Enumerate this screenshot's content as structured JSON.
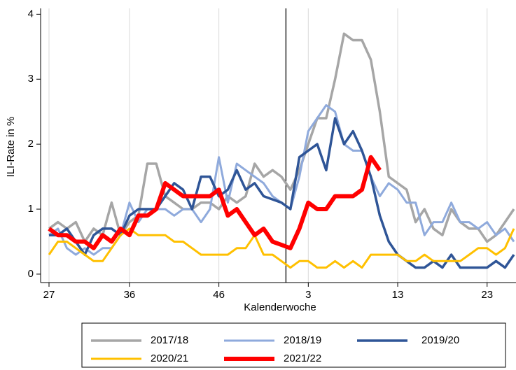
{
  "chart_data": {
    "type": "line",
    "xlabel": "Kalenderwoche",
    "ylabel": "ILI-Rate in %",
    "categories": [
      "27",
      null,
      null,
      null,
      null,
      null,
      null,
      null,
      null,
      "36",
      null,
      null,
      null,
      null,
      null,
      null,
      null,
      null,
      null,
      "46",
      null,
      null,
      null,
      null,
      null,
      null,
      null,
      null,
      null,
      "3",
      null,
      null,
      null,
      null,
      null,
      null,
      null,
      null,
      null,
      "13",
      null,
      null,
      null,
      null,
      null,
      null,
      null,
      null,
      null,
      "23",
      null,
      null,
      null
    ],
    "vline_x": 26.5,
    "ylim": [
      -0.13,
      4.09
    ],
    "yticks": [
      0,
      1,
      2,
      3,
      4
    ],
    "grid": true,
    "series": [
      {
        "name": "2017/18",
        "color": "#a6a6a6",
        "width": 3.5,
        "values": [
          0.7,
          0.8,
          0.7,
          0.8,
          0.5,
          0.7,
          0.6,
          1.1,
          0.6,
          0.8,
          0.9,
          1.7,
          1.7,
          1.2,
          1.1,
          1.0,
          1.0,
          1.1,
          1.1,
          1.0,
          1.2,
          1.1,
          1.2,
          1.7,
          1.5,
          1.6,
          1.5,
          1.3,
          1.6,
          2.0,
          2.4,
          2.4,
          3.0,
          3.7,
          3.6,
          3.6,
          3.3,
          2.5,
          1.5,
          1.4,
          1.3,
          0.8,
          1.0,
          0.7,
          0.6,
          1.0,
          0.8,
          0.7,
          0.7,
          0.5,
          0.6,
          0.8,
          1.0
        ]
      },
      {
        "name": "2018/19",
        "color": "#8faadc",
        "width": 3,
        "values": [
          0.6,
          0.7,
          0.4,
          0.3,
          0.4,
          0.3,
          0.4,
          0.4,
          0.6,
          1.1,
          0.8,
          1.0,
          1.0,
          1.0,
          0.9,
          1.0,
          1.0,
          0.8,
          1.0,
          1.8,
          1.1,
          1.7,
          1.6,
          1.5,
          1.4,
          1.2,
          1.1,
          1.0,
          1.5,
          2.2,
          2.4,
          2.6,
          2.5,
          2.0,
          1.9,
          1.9,
          1.5,
          1.2,
          1.4,
          1.3,
          1.1,
          1.1,
          0.6,
          0.8,
          0.8,
          1.1,
          0.8,
          0.8,
          0.7,
          0.8,
          0.6,
          0.7,
          0.5
        ]
      },
      {
        "name": "2019/20",
        "color": "#2f5597",
        "width": 3.5,
        "values": [
          0.6,
          0.6,
          0.7,
          0.5,
          0.3,
          0.6,
          0.7,
          0.7,
          0.6,
          0.9,
          1.0,
          1.0,
          1.0,
          1.2,
          1.4,
          1.3,
          1.0,
          1.5,
          1.5,
          1.2,
          1.3,
          1.6,
          1.3,
          1.4,
          1.2,
          1.15,
          1.1,
          1.0,
          1.8,
          1.9,
          2.0,
          1.6,
          2.4,
          2.0,
          2.2,
          1.9,
          1.5,
          0.9,
          0.5,
          0.3,
          0.2,
          0.1,
          0.1,
          0.2,
          0.1,
          0.3,
          0.1,
          0.1,
          0.1,
          0.1,
          0.2,
          0.1,
          0.3
        ]
      },
      {
        "name": "2020/21",
        "color": "#ffc000",
        "width": 3,
        "values": [
          0.3,
          0.5,
          0.5,
          0.4,
          0.3,
          0.2,
          0.2,
          0.4,
          0.6,
          0.7,
          0.6,
          0.6,
          0.6,
          0.6,
          0.5,
          0.5,
          0.4,
          0.3,
          0.3,
          0.3,
          0.3,
          0.4,
          0.4,
          0.6,
          0.3,
          0.3,
          0.2,
          0.1,
          0.2,
          0.2,
          0.1,
          0.1,
          0.2,
          0.1,
          0.2,
          0.1,
          0.3,
          0.3,
          0.3,
          0.3,
          0.2,
          0.2,
          0.3,
          0.2,
          0.2,
          0.2,
          0.2,
          0.3,
          0.4,
          0.4,
          0.3,
          0.4,
          0.7
        ]
      },
      {
        "name": "2021/22",
        "color": "#ff0000",
        "width": 6,
        "values": [
          0.7,
          0.6,
          0.6,
          0.5,
          0.5,
          0.4,
          0.6,
          0.5,
          0.7,
          0.6,
          0.9,
          0.9,
          1.0,
          1.4,
          1.3,
          1.2,
          1.2,
          1.2,
          1.2,
          1.3,
          0.9,
          1.0,
          0.8,
          0.6,
          0.7,
          0.5,
          0.45,
          0.4,
          0.7,
          1.1,
          1.0,
          1.0,
          1.2,
          1.2,
          1.2,
          1.3,
          1.8,
          1.6,
          null,
          null,
          null,
          null,
          null,
          null,
          null,
          null,
          null,
          null,
          null,
          null,
          null,
          null,
          null
        ]
      }
    ]
  }
}
